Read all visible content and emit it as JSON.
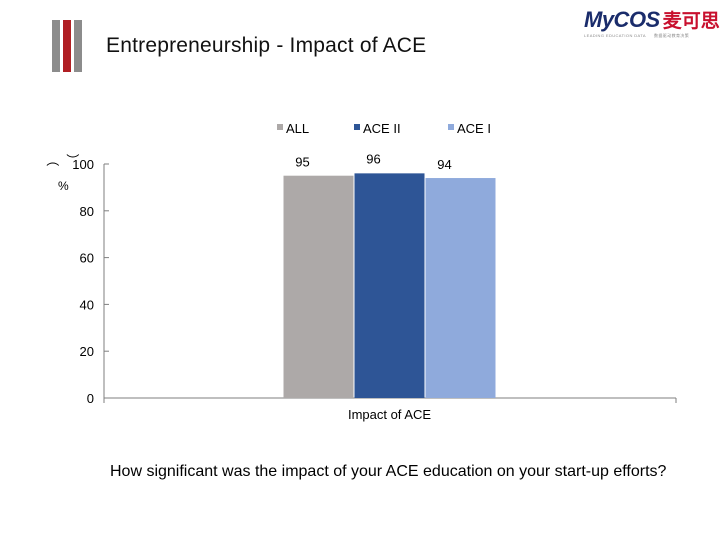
{
  "title": "Entrepreneurship - Impact of ACE",
  "logo": {
    "main": "MyCOS",
    "cn": "麦可思",
    "registered": "®",
    "sub_left": "LEADING EDUCATION DATA",
    "sub_right": "数据驱动教育决策"
  },
  "question": "How significant was the impact of your ACE education on your start-up efforts?",
  "colors": {
    "all": "#ADA9A8",
    "ace2": "#2E5596",
    "ace1": "#8FAADC",
    "axis": "#7f7f7f"
  },
  "chart_data": {
    "type": "bar",
    "categories": [
      "Impact of ACE"
    ],
    "series": [
      {
        "name": "ALL",
        "values": [
          95
        ]
      },
      {
        "name": "ACE II",
        "values": [
          96
        ]
      },
      {
        "name": "ACE I",
        "values": [
          94
        ]
      }
    ],
    "xlabel": "Impact of ACE",
    "ylabel": "（%）",
    "ylim": [
      0,
      100
    ],
    "yticks": [
      0,
      20,
      40,
      60,
      80,
      100
    ],
    "legend": "top-center",
    "grid": false
  }
}
